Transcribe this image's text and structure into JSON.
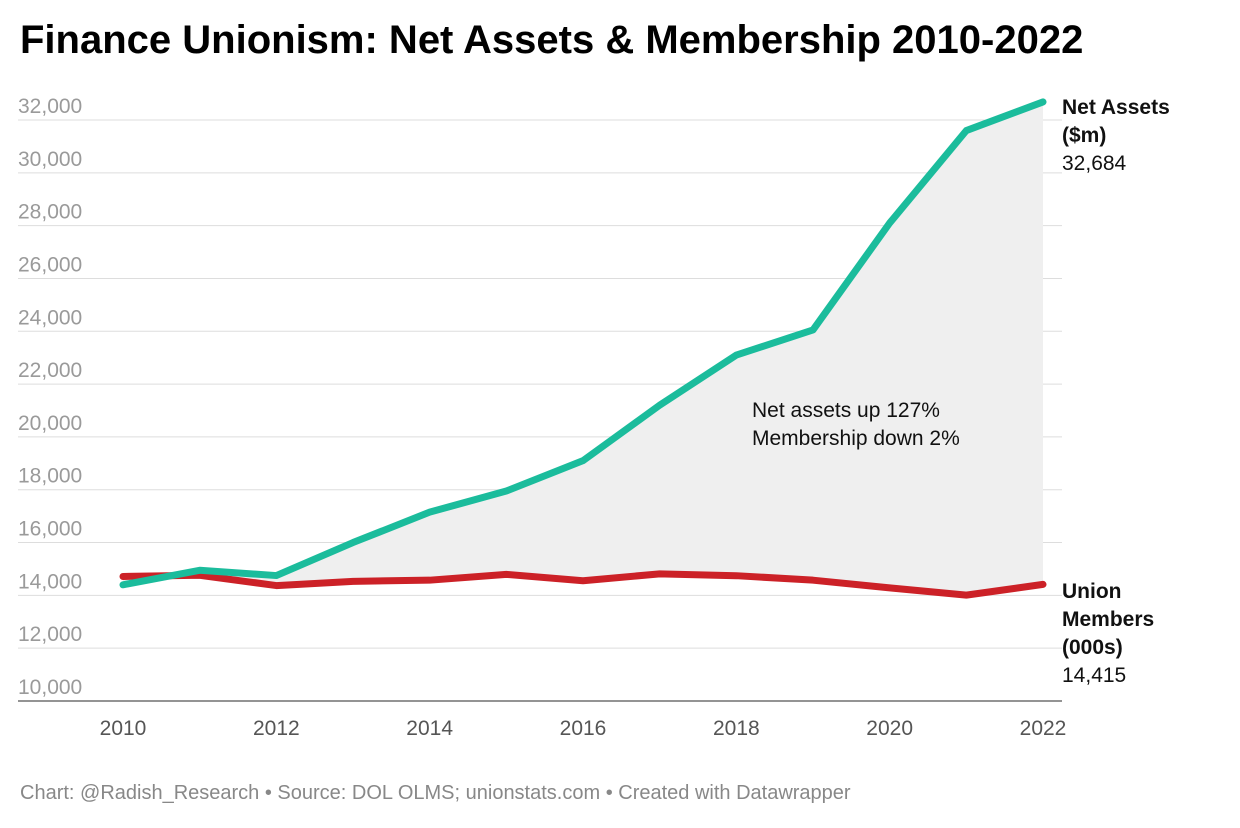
{
  "header": {
    "title": "Finance Unionism: Net Assets & Membership 2010-2022"
  },
  "footer": {
    "text": "Chart: @Radish_Research • Source: DOL OLMS; unionstats.com • Created with Datawrapper"
  },
  "chart_data": {
    "type": "line",
    "title": "Finance Unionism: Net Assets & Membership 2010-2022",
    "xlabel": "",
    "ylabel": "",
    "x": [
      2010,
      2011,
      2012,
      2013,
      2014,
      2015,
      2016,
      2017,
      2018,
      2019,
      2020,
      2021,
      2022
    ],
    "xticks": [
      "2010",
      "2012",
      "2014",
      "2016",
      "2018",
      "2020",
      "2022"
    ],
    "ylim": [
      10000,
      32000
    ],
    "yticks": [
      "10,000",
      "12,000",
      "14,000",
      "16,000",
      "18,000",
      "20,000",
      "22,000",
      "24,000",
      "26,000",
      "28,000",
      "30,000",
      "32,000"
    ],
    "grid": true,
    "legend": "direct labels at line ends",
    "area_between_series": true,
    "series": [
      {
        "name_lines": [
          "Net Assets",
          "($m)"
        ],
        "end_label": "32,684",
        "color": "#1bbc9c",
        "values": [
          14400,
          14950,
          14750,
          16000,
          17150,
          17950,
          19100,
          21200,
          23100,
          24050,
          28100,
          31600,
          32684
        ]
      },
      {
        "name_lines": [
          "Union",
          "Members",
          "(000s)"
        ],
        "end_label": "14,415",
        "color": "#cc2127",
        "values": [
          14715,
          14760,
          14370,
          14530,
          14575,
          14795,
          14555,
          14815,
          14745,
          14575,
          14285,
          14010,
          14415
        ]
      }
    ],
    "annotation": [
      "Net assets up 127%",
      "Membership down 2%"
    ],
    "area_color": "#efefef"
  }
}
